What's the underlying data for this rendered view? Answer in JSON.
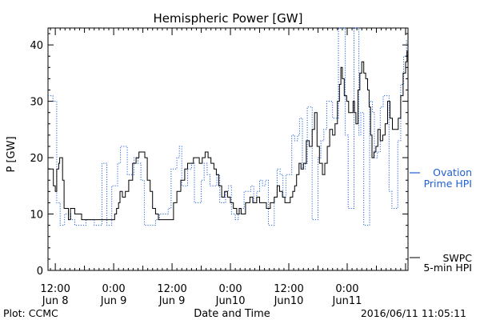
{
  "chart_data": {
    "type": "line",
    "title": "Hemispheric Power [GW]",
    "ylabel": "P [GW]",
    "xlabel": "Date and Time",
    "ylim": [
      0,
      43
    ],
    "yticks": [
      0,
      10,
      20,
      30,
      40
    ],
    "xlim_hours": [
      -1.5,
      72.5
    ],
    "xticks": [
      {
        "hour": 0,
        "line1": "12:00",
        "line2": "Jun 8"
      },
      {
        "hour": 12,
        "line1": "0:00",
        "line2": "Jun 9"
      },
      {
        "hour": 24,
        "line1": "12:00",
        "line2": "Jun 9"
      },
      {
        "hour": 36,
        "line1": "0:00",
        "line2": "Jun10"
      },
      {
        "hour": 48,
        "line1": "12:00",
        "line2": "Jun10"
      },
      {
        "hour": 60,
        "line1": "0:00",
        "line2": "Jun11"
      }
    ],
    "grid": false,
    "series": [
      {
        "name": "SWPC 5-min HPI",
        "color": "#000000",
        "style": "solid",
        "points": [
          [
            -1.5,
            18
          ],
          [
            -0.8,
            18
          ],
          [
            -0.4,
            15
          ],
          [
            0,
            14
          ],
          [
            0.3,
            18
          ],
          [
            0.7,
            19
          ],
          [
            0.9,
            20
          ],
          [
            1.2,
            20
          ],
          [
            1.5,
            16
          ],
          [
            1.8,
            11
          ],
          [
            2.4,
            11
          ],
          [
            2.7,
            9
          ],
          [
            3.1,
            11
          ],
          [
            3.6,
            11
          ],
          [
            4,
            10
          ],
          [
            4.8,
            10
          ],
          [
            5.4,
            9
          ],
          [
            8.2,
            9
          ],
          [
            10.4,
            9
          ],
          [
            11.5,
            9
          ],
          [
            12.2,
            10
          ],
          [
            12.6,
            11
          ],
          [
            13,
            12
          ],
          [
            13.3,
            14
          ],
          [
            13.8,
            13
          ],
          [
            14.4,
            14
          ],
          [
            15.1,
            16
          ],
          [
            15.9,
            19
          ],
          [
            16.6,
            20
          ],
          [
            17.2,
            21
          ],
          [
            17.8,
            21
          ],
          [
            18.4,
            20
          ],
          [
            18.9,
            16
          ],
          [
            19.5,
            14
          ],
          [
            20,
            11
          ],
          [
            20.6,
            10
          ],
          [
            21.2,
            9
          ],
          [
            23.6,
            9
          ],
          [
            24.3,
            12
          ],
          [
            25,
            14
          ],
          [
            25.8,
            16
          ],
          [
            26.6,
            18
          ],
          [
            27.2,
            19
          ],
          [
            27.8,
            19
          ],
          [
            28.4,
            20
          ],
          [
            29,
            20
          ],
          [
            29.6,
            19
          ],
          [
            30.2,
            20
          ],
          [
            30.8,
            21
          ],
          [
            31.4,
            20
          ],
          [
            32,
            19
          ],
          [
            32.6,
            18
          ],
          [
            33.1,
            17
          ],
          [
            33.6,
            15
          ],
          [
            34.2,
            13
          ],
          [
            34.8,
            14
          ],
          [
            35.4,
            13
          ],
          [
            36,
            12
          ],
          [
            36.6,
            11
          ],
          [
            37.3,
            10
          ],
          [
            37.8,
            11
          ],
          [
            38.2,
            10
          ],
          [
            38.6,
            10
          ],
          [
            39.1,
            12
          ],
          [
            39.6,
            12
          ],
          [
            40,
            13
          ],
          [
            40.6,
            12
          ],
          [
            41.4,
            13
          ],
          [
            42,
            12
          ],
          [
            42.6,
            12
          ],
          [
            43.4,
            11
          ],
          [
            44.2,
            12
          ],
          [
            45,
            13
          ],
          [
            45.6,
            15
          ],
          [
            46.1,
            14
          ],
          [
            46.7,
            13
          ],
          [
            47.2,
            12
          ],
          [
            47.8,
            12
          ],
          [
            48.3,
            13
          ],
          [
            48.8,
            14
          ],
          [
            49.2,
            15
          ],
          [
            49.6,
            17
          ],
          [
            50.1,
            19
          ],
          [
            50.5,
            18
          ],
          [
            51,
            19
          ],
          [
            51.6,
            23
          ],
          [
            52.2,
            22
          ],
          [
            52.8,
            25
          ],
          [
            53.3,
            28
          ],
          [
            53.8,
            22
          ],
          [
            54.3,
            19
          ],
          [
            54.9,
            17
          ],
          [
            55.4,
            19
          ],
          [
            55.9,
            22
          ],
          [
            56.4,
            25
          ],
          [
            57,
            24
          ],
          [
            57.5,
            26
          ],
          [
            58,
            30
          ],
          [
            58.4,
            33
          ],
          [
            58.7,
            36
          ],
          [
            59,
            34
          ],
          [
            59.4,
            31
          ],
          [
            59.9,
            30
          ],
          [
            60.3,
            28
          ],
          [
            60.8,
            28
          ],
          [
            61.2,
            30
          ],
          [
            61.5,
            28
          ],
          [
            61.8,
            26
          ],
          [
            62.2,
            32
          ],
          [
            62.6,
            35
          ],
          [
            63,
            37
          ],
          [
            63.4,
            35
          ],
          [
            63.8,
            34
          ],
          [
            64.2,
            32
          ],
          [
            64.5,
            29
          ],
          [
            64.8,
            24
          ],
          [
            65.1,
            20
          ],
          [
            65.5,
            21
          ],
          [
            65.9,
            22
          ],
          [
            66.3,
            25
          ],
          [
            66.8,
            23
          ],
          [
            67.3,
            24
          ],
          [
            67.8,
            26
          ],
          [
            68.3,
            30
          ],
          [
            68.8,
            27
          ],
          [
            69.3,
            25
          ],
          [
            69.9,
            25
          ],
          [
            70.5,
            27
          ],
          [
            71,
            31
          ],
          [
            71.5,
            35
          ],
          [
            72,
            37
          ],
          [
            72.3,
            39
          ]
        ]
      },
      {
        "name": "Ovation Prime HPI",
        "color": "#1f5fd6",
        "style": "dotted",
        "points": [
          [
            -1.5,
            31
          ],
          [
            -0.5,
            30
          ],
          [
            0,
            30
          ],
          [
            0.3,
            12
          ],
          [
            0.7,
            12
          ],
          [
            1,
            8
          ],
          [
            1.5,
            8
          ],
          [
            1.9,
            10
          ],
          [
            2.3,
            10
          ],
          [
            3.2,
            9
          ],
          [
            4,
            8
          ],
          [
            5.5,
            8
          ],
          [
            6.3,
            9
          ],
          [
            7.4,
            9
          ],
          [
            8,
            8
          ],
          [
            9,
            8
          ],
          [
            9.6,
            19
          ],
          [
            10.2,
            19
          ],
          [
            10.6,
            8
          ],
          [
            11.2,
            8
          ],
          [
            11.6,
            15
          ],
          [
            12.3,
            15
          ],
          [
            12.8,
            19
          ],
          [
            13.4,
            22
          ],
          [
            14.2,
            22
          ],
          [
            14.8,
            17
          ],
          [
            15.5,
            17
          ],
          [
            16.2,
            20
          ],
          [
            17,
            19
          ],
          [
            17.6,
            16
          ],
          [
            18.3,
            8
          ],
          [
            20,
            8
          ],
          [
            20.6,
            9
          ],
          [
            21.4,
            10
          ],
          [
            22.4,
            10
          ],
          [
            23.2,
            11
          ],
          [
            23.8,
            18
          ],
          [
            24.4,
            18
          ],
          [
            25,
            20
          ],
          [
            25.5,
            22
          ],
          [
            26,
            15
          ],
          [
            26.6,
            15
          ],
          [
            27.2,
            18
          ],
          [
            28,
            19
          ],
          [
            28.6,
            12
          ],
          [
            29.4,
            12
          ],
          [
            30,
            16
          ],
          [
            30.6,
            19
          ],
          [
            31.2,
            17
          ],
          [
            31.8,
            15
          ],
          [
            32.6,
            15
          ],
          [
            33.2,
            17
          ],
          [
            33.8,
            12
          ],
          [
            34.6,
            12
          ],
          [
            35,
            14
          ],
          [
            35.6,
            15
          ],
          [
            36.2,
            10
          ],
          [
            37,
            9
          ],
          [
            37.6,
            10
          ],
          [
            38.2,
            11
          ],
          [
            38.8,
            14
          ],
          [
            39.4,
            14
          ],
          [
            40.2,
            15
          ],
          [
            40.8,
            12
          ],
          [
            41.4,
            14
          ],
          [
            42,
            16
          ],
          [
            42.6,
            15
          ],
          [
            43.2,
            16
          ],
          [
            43.8,
            8
          ],
          [
            44.4,
            8
          ],
          [
            45,
            13
          ],
          [
            45.6,
            18
          ],
          [
            46.2,
            17
          ],
          [
            46.8,
            13
          ],
          [
            47.4,
            17
          ],
          [
            48,
            17
          ],
          [
            48.6,
            24
          ],
          [
            49.2,
            23
          ],
          [
            49.8,
            24
          ],
          [
            50.2,
            27
          ],
          [
            50.8,
            18
          ],
          [
            51.4,
            19
          ],
          [
            51.8,
            29
          ],
          [
            52.4,
            29
          ],
          [
            52.8,
            9
          ],
          [
            53.4,
            9
          ],
          [
            54,
            20
          ],
          [
            54.6,
            23
          ],
          [
            55.2,
            25
          ],
          [
            55.8,
            30
          ],
          [
            56.4,
            30
          ],
          [
            57,
            27
          ],
          [
            57.6,
            27
          ],
          [
            58.2,
            43
          ],
          [
            59,
            43
          ],
          [
            59.6,
            24
          ],
          [
            60.2,
            11
          ],
          [
            60.8,
            11
          ],
          [
            61.4,
            43
          ],
          [
            62,
            43
          ],
          [
            62.4,
            24
          ],
          [
            62.8,
            28
          ],
          [
            63.4,
            8
          ],
          [
            64,
            8
          ],
          [
            64.6,
            30
          ],
          [
            65.2,
            28
          ],
          [
            65.6,
            20
          ],
          [
            66.2,
            21
          ],
          [
            66.8,
            29
          ],
          [
            67.4,
            31
          ],
          [
            68,
            31
          ],
          [
            68.6,
            14
          ],
          [
            69.2,
            11
          ],
          [
            69.8,
            11
          ],
          [
            70.4,
            23
          ],
          [
            71,
            33
          ],
          [
            71.6,
            38
          ],
          [
            72.2,
            41
          ]
        ]
      }
    ]
  },
  "legend": {
    "ovation_line1": "Ovation",
    "ovation_line2": "Prime HPI",
    "swpc_line1": "SWPC",
    "swpc_line2": "5-min HPI"
  },
  "footer": {
    "plot_credit": "Plot: CCMC",
    "timestamp": "2016/06/11 11:05:11"
  }
}
